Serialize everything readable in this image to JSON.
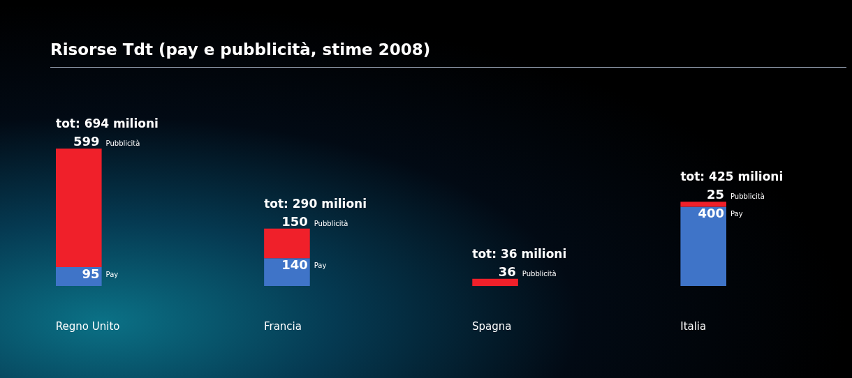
{
  "chart_data": {
    "type": "bar",
    "title": "Risorse Tdt (pay e pubblicità, stime 2008)",
    "categories": [
      "Regno Unito",
      "Francia",
      "Spagna",
      "Italia"
    ],
    "stacked": true,
    "data_labels": true,
    "series": [
      {
        "name": "Pay",
        "color": "#3f74c8",
        "values": [
          95,
          140,
          null,
          400
        ]
      },
      {
        "name": "Pubblicità",
        "color": "#f0202a",
        "values": [
          599,
          150,
          36,
          25
        ]
      }
    ],
    "totals": [
      "tot: 694 milioni",
      "tot: 290 milioni",
      "tot: 36 milioni",
      "tot: 425 milioni"
    ]
  }
}
